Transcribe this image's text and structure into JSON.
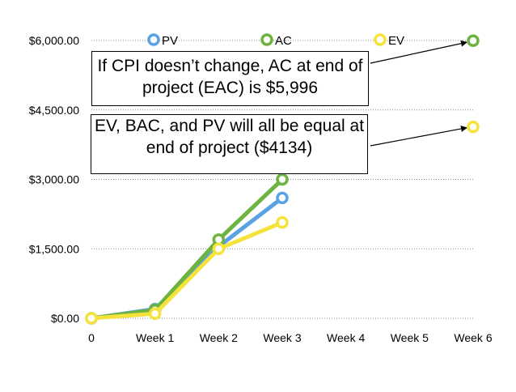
{
  "chart_data": {
    "type": "line",
    "categories": [
      "0",
      "Week 1",
      "Week 2",
      "Week 3",
      "Week 4",
      "Week 5",
      "Week 6"
    ],
    "series": [
      {
        "name": "PV",
        "color": "#5aa2e4",
        "values": [
          0,
          200,
          1550,
          2600,
          null,
          null,
          null
        ]
      },
      {
        "name": "AC",
        "color": "#6db33f",
        "values": [
          0,
          180,
          1700,
          3000,
          null,
          null,
          5996
        ]
      },
      {
        "name": "EV",
        "color": "#f5e23b",
        "values": [
          0,
          100,
          1500,
          2070,
          null,
          null,
          4134
        ]
      }
    ],
    "ylim": [
      0,
      6000
    ],
    "yticks": [
      0,
      1500,
      3000,
      4500,
      6000
    ],
    "ytick_labels": [
      "$0.00",
      "$1,500.00",
      "$3,000.00",
      "$4,500.00",
      "$6,000.00"
    ],
    "grid": true,
    "legend_position": "top",
    "annotations": [
      {
        "id": "eac",
        "text": "If CPI doesn’t change, AC at end of project (EAC) is $5,996",
        "points_to": {
          "category": "Week 6",
          "value": 5996
        }
      },
      {
        "id": "bac",
        "text": "EV, BAC, and PV will all be equal at end of project ($4134)",
        "points_to": {
          "category": "Week 6",
          "value": 4134
        }
      }
    ]
  }
}
